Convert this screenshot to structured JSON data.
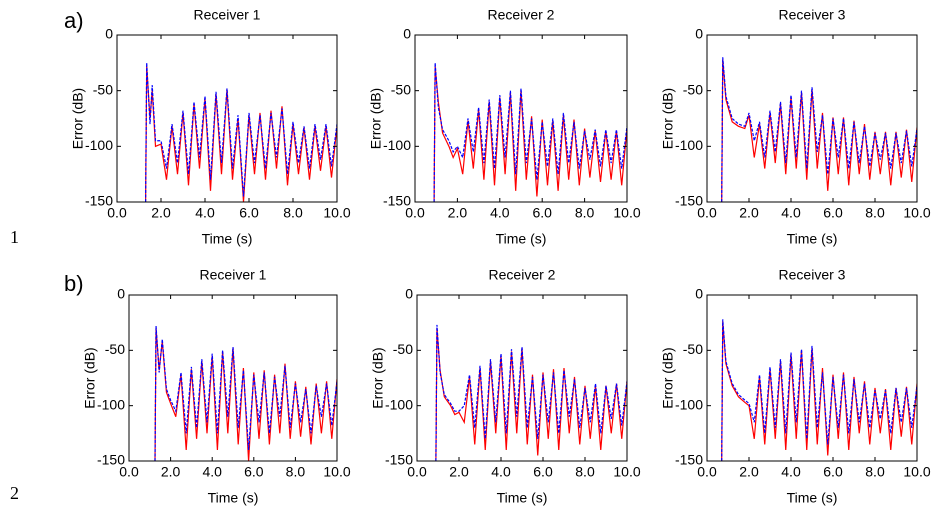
{
  "panel_labels": [
    "a)",
    "b)"
  ],
  "line_numbers": [
    "1",
    "2"
  ],
  "chart_data": [
    {
      "type": "line",
      "title": "Receiver 1",
      "xlabel": "Time (s)",
      "ylabel": "Error (dB)",
      "xlim": [
        0,
        10
      ],
      "ylim": [
        -150,
        0
      ],
      "xticks": [
        {
          "value": 0,
          "label": "0.0"
        },
        {
          "value": 2,
          "label": "2.0"
        },
        {
          "value": 4,
          "label": "4.0"
        },
        {
          "value": 6,
          "label": "6.0"
        },
        {
          "value": 8,
          "label": "8.0"
        },
        {
          "value": 10,
          "label": "10.0"
        }
      ],
      "yticks": [
        -150,
        -100,
        -50,
        0
      ],
      "x": [
        1.3,
        1.35,
        1.5,
        1.6,
        1.75,
        2,
        2.25,
        2.5,
        2.75,
        3,
        3.25,
        3.5,
        3.75,
        4,
        4.25,
        4.5,
        4.75,
        5,
        5.25,
        5.5,
        5.75,
        6,
        6.25,
        6.5,
        6.75,
        7,
        7.25,
        7.5,
        7.75,
        8,
        8.25,
        8.5,
        8.75,
        9,
        9.25,
        9.5,
        9.75,
        10
      ],
      "series": [
        {
          "color": "#ff0000",
          "linestyle": "solid",
          "values": [
            -150,
            -28,
            -75,
            -50,
            -100,
            -98,
            -130,
            -82,
            -125,
            -70,
            -135,
            -62,
            -120,
            -57,
            -140,
            -53,
            -125,
            -49,
            -130,
            -75,
            -150,
            -72,
            -125,
            -70,
            -130,
            -68,
            -120,
            -64,
            -135,
            -80,
            -125,
            -83,
            -130,
            -82,
            -122,
            -82,
            -128,
            -82
          ]
        },
        {
          "color": "#0000ff",
          "linestyle": "dashed",
          "values": [
            -150,
            -25,
            -80,
            -45,
            -95,
            -95,
            -120,
            -80,
            -115,
            -68,
            -125,
            -60,
            -110,
            -55,
            -130,
            -51,
            -115,
            -48,
            -120,
            -72,
            -145,
            -70,
            -115,
            -72,
            -120,
            -70,
            -110,
            -66,
            -125,
            -78,
            -115,
            -82,
            -120,
            -80,
            -112,
            -80,
            -118,
            -80
          ]
        }
      ]
    },
    {
      "type": "line",
      "title": "Receiver 2",
      "xlabel": "Time (s)",
      "ylabel": "Error (dB)",
      "xlim": [
        0,
        10
      ],
      "ylim": [
        -150,
        0
      ],
      "xticks": [
        {
          "value": 0,
          "label": "0.0"
        },
        {
          "value": 2,
          "label": "2.0"
        },
        {
          "value": 4,
          "label": "4.0"
        },
        {
          "value": 6,
          "label": "6.0"
        },
        {
          "value": 8,
          "label": "8.0"
        },
        {
          "value": 10,
          "label": "10.0"
        }
      ],
      "yticks": [
        -150,
        -100,
        -50,
        0
      ],
      "x": [
        0.9,
        0.95,
        1.1,
        1.3,
        1.6,
        1.8,
        2,
        2.25,
        2.5,
        2.75,
        3,
        3.25,
        3.5,
        3.75,
        4,
        4.25,
        4.5,
        4.75,
        5,
        5.25,
        5.5,
        5.75,
        6,
        6.25,
        6.5,
        6.75,
        7,
        7.25,
        7.5,
        7.75,
        8,
        8.25,
        8.5,
        8.75,
        9,
        9.25,
        9.5,
        9.75,
        10
      ],
      "series": [
        {
          "color": "#ff0000",
          "linestyle": "solid",
          "values": [
            -150,
            -28,
            -60,
            -88,
            -100,
            -110,
            -102,
            -125,
            -77,
            -120,
            -67,
            -130,
            -60,
            -135,
            -56,
            -125,
            -52,
            -140,
            -50,
            -130,
            -73,
            -145,
            -76,
            -135,
            -77,
            -140,
            -72,
            -130,
            -76,
            -135,
            -84,
            -128,
            -86,
            -132,
            -86,
            -130,
            -86,
            -135,
            -84
          ]
        },
        {
          "color": "#0000ff",
          "linestyle": "dashed",
          "values": [
            -150,
            -25,
            -65,
            -85,
            -95,
            -105,
            -100,
            -110,
            -75,
            -105,
            -65,
            -115,
            -58,
            -120,
            -54,
            -110,
            -50,
            -125,
            -48,
            -115,
            -75,
            -130,
            -78,
            -118,
            -75,
            -125,
            -70,
            -115,
            -78,
            -120,
            -86,
            -112,
            -85,
            -118,
            -85,
            -115,
            -85,
            -120,
            -82
          ]
        }
      ]
    },
    {
      "type": "line",
      "title": "Receiver 3",
      "xlabel": "Time (s)",
      "ylabel": "Error (dB)",
      "xlim": [
        0,
        10
      ],
      "ylim": [
        -150,
        0
      ],
      "xticks": [
        {
          "value": 0,
          "label": "0.0"
        },
        {
          "value": 2,
          "label": "2.0"
        },
        {
          "value": 4,
          "label": "4.0"
        },
        {
          "value": 6,
          "label": "6.0"
        },
        {
          "value": 8,
          "label": "8.0"
        },
        {
          "value": 10,
          "label": "10.0"
        }
      ],
      "yticks": [
        -150,
        -100,
        -50,
        0
      ],
      "x": [
        0.7,
        0.75,
        0.9,
        1.2,
        1.5,
        1.8,
        2,
        2.25,
        2.5,
        2.75,
        3,
        3.25,
        3.5,
        3.75,
        4,
        4.25,
        4.5,
        4.75,
        5,
        5.25,
        5.5,
        5.75,
        6,
        6.25,
        6.5,
        6.75,
        7,
        7.25,
        7.5,
        7.75,
        8,
        8.25,
        8.5,
        8.75,
        9,
        9.25,
        9.5,
        9.75,
        10
      ],
      "series": [
        {
          "color": "#ff0000",
          "linestyle": "solid",
          "values": [
            -150,
            -22,
            -58,
            -78,
            -82,
            -84,
            -72,
            -110,
            -80,
            -120,
            -70,
            -115,
            -62,
            -125,
            -56,
            -120,
            -52,
            -130,
            -49,
            -120,
            -70,
            -140,
            -74,
            -125,
            -74,
            -135,
            -77,
            -125,
            -80,
            -130,
            -87,
            -125,
            -87,
            -135,
            -87,
            -128,
            -85,
            -132,
            -83
          ]
        },
        {
          "color": "#0000ff",
          "linestyle": "dashed",
          "values": [
            -150,
            -20,
            -55,
            -75,
            -80,
            -82,
            -70,
            -95,
            -78,
            -110,
            -68,
            -105,
            -60,
            -115,
            -54,
            -110,
            -50,
            -120,
            -47,
            -105,
            -72,
            -125,
            -75,
            -110,
            -75,
            -120,
            -78,
            -115,
            -82,
            -118,
            -88,
            -112,
            -88,
            -120,
            -88,
            -115,
            -86,
            -118,
            -84
          ]
        }
      ]
    },
    {
      "type": "line",
      "title": "Receiver 1",
      "xlabel": "Time (s)",
      "ylabel": "Error (dB)",
      "xlim": [
        0,
        10
      ],
      "ylim": [
        -150,
        0
      ],
      "xticks": [
        {
          "value": 0,
          "label": "0.0"
        },
        {
          "value": 2,
          "label": "2.0"
        },
        {
          "value": 4,
          "label": "4.0"
        },
        {
          "value": 6,
          "label": "6.0"
        },
        {
          "value": 8,
          "label": "8.0"
        },
        {
          "value": 10,
          "label": "10.0"
        }
      ],
      "yticks": [
        -150,
        -100,
        -50,
        0
      ],
      "x": [
        1.25,
        1.3,
        1.45,
        1.6,
        1.8,
        2,
        2.25,
        2.5,
        2.75,
        3,
        3.25,
        3.5,
        3.75,
        4,
        4.25,
        4.5,
        4.75,
        5,
        5.25,
        5.5,
        5.75,
        6,
        6.25,
        6.5,
        6.75,
        7,
        7.25,
        7.5,
        7.75,
        8,
        8.25,
        8.5,
        8.75,
        9,
        9.25,
        9.5,
        9.75,
        10
      ],
      "series": [
        {
          "color": "#ff0000",
          "linestyle": "solid",
          "values": [
            -150,
            -30,
            -68,
            -42,
            -88,
            -98,
            -110,
            -72,
            -140,
            -67,
            -130,
            -60,
            -125,
            -55,
            -140,
            -51,
            -125,
            -48,
            -135,
            -66,
            -150,
            -70,
            -130,
            -68,
            -135,
            -72,
            -125,
            -62,
            -130,
            -78,
            -128,
            -83,
            -135,
            -80,
            -125,
            -78,
            -130,
            -76
          ]
        },
        {
          "color": "#0000ff",
          "linestyle": "dashed",
          "values": [
            -150,
            -28,
            -70,
            -40,
            -85,
            -95,
            -105,
            -70,
            -125,
            -65,
            -120,
            -58,
            -115,
            -53,
            -125,
            -50,
            -110,
            -47,
            -120,
            -68,
            -140,
            -72,
            -115,
            -70,
            -125,
            -74,
            -110,
            -64,
            -120,
            -80,
            -115,
            -85,
            -125,
            -82,
            -110,
            -80,
            -118,
            -78
          ]
        }
      ]
    },
    {
      "type": "line",
      "title": "Receiver 2",
      "xlabel": "Time (s)",
      "ylabel": "Error (dB)",
      "xlim": [
        0,
        10
      ],
      "ylim": [
        -150,
        0
      ],
      "xticks": [
        {
          "value": 0,
          "label": "0.0"
        },
        {
          "value": 2,
          "label": "2.0"
        },
        {
          "value": 4,
          "label": "4.0"
        },
        {
          "value": 6,
          "label": "6.0"
        },
        {
          "value": 8,
          "label": "8.0"
        },
        {
          "value": 10,
          "label": "10.0"
        }
      ],
      "yticks": [
        -150,
        -100,
        -50,
        0
      ],
      "x": [
        0.9,
        0.95,
        1.1,
        1.3,
        1.6,
        1.8,
        2,
        2.25,
        2.5,
        2.75,
        3,
        3.25,
        3.5,
        3.75,
        4,
        4.25,
        4.5,
        4.75,
        5,
        5.25,
        5.5,
        5.75,
        6,
        6.25,
        6.5,
        6.75,
        7,
        7.25,
        7.5,
        7.75,
        8,
        8.25,
        8.5,
        8.75,
        9,
        9.25,
        9.5,
        9.75,
        10
      ],
      "series": [
        {
          "color": "#ff0000",
          "linestyle": "solid",
          "values": [
            -150,
            -30,
            -68,
            -92,
            -100,
            -108,
            -106,
            -115,
            -74,
            -135,
            -66,
            -140,
            -60,
            -125,
            -55,
            -140,
            -51,
            -125,
            -48,
            -135,
            -72,
            -145,
            -70,
            -130,
            -67,
            -140,
            -66,
            -125,
            -74,
            -135,
            -82,
            -130,
            -82,
            -140,
            -82,
            -125,
            -80,
            -130,
            -78
          ]
        },
        {
          "color": "#0000ff",
          "linestyle": "dashed",
          "values": [
            -150,
            -27,
            -70,
            -90,
            -98,
            -105,
            -105,
            -100,
            -72,
            -120,
            -64,
            -130,
            -58,
            -115,
            -53,
            -125,
            -49,
            -110,
            -47,
            -120,
            -74,
            -130,
            -72,
            -115,
            -70,
            -125,
            -68,
            -110,
            -76,
            -120,
            -84,
            -115,
            -80,
            -125,
            -82,
            -112,
            -80,
            -118,
            -78
          ]
        }
      ]
    },
    {
      "type": "line",
      "title": "Receiver 3",
      "xlabel": "Time (s)",
      "ylabel": "Error (dB)",
      "xlim": [
        0,
        10
      ],
      "ylim": [
        -150,
        0
      ],
      "xticks": [
        {
          "value": 0,
          "label": "0.0"
        },
        {
          "value": 2,
          "label": "2.0"
        },
        {
          "value": 4,
          "label": "4.0"
        },
        {
          "value": 6,
          "label": "6.0"
        },
        {
          "value": 8,
          "label": "8.0"
        },
        {
          "value": 10,
          "label": "10.0"
        }
      ],
      "yticks": [
        -150,
        -100,
        -50,
        0
      ],
      "x": [
        0.7,
        0.75,
        0.9,
        1.2,
        1.5,
        1.8,
        2,
        2.25,
        2.5,
        2.75,
        3,
        3.25,
        3.5,
        3.75,
        4,
        4.25,
        4.5,
        4.75,
        5,
        5.25,
        5.5,
        5.75,
        6,
        6.25,
        6.5,
        6.75,
        7,
        7.25,
        7.5,
        7.75,
        8,
        8.25,
        8.5,
        8.75,
        9,
        9.25,
        9.5,
        9.75,
        10
      ],
      "series": [
        {
          "color": "#ff0000",
          "linestyle": "solid",
          "values": [
            -150,
            -24,
            -62,
            -82,
            -92,
            -97,
            -100,
            -130,
            -74,
            -135,
            -67,
            -130,
            -60,
            -140,
            -54,
            -130,
            -50,
            -140,
            -48,
            -135,
            -66,
            -145,
            -72,
            -130,
            -70,
            -140,
            -74,
            -125,
            -78,
            -135,
            -84,
            -125,
            -85,
            -140,
            -84,
            -128,
            -83,
            -135,
            -80
          ]
        },
        {
          "color": "#0000ff",
          "linestyle": "dashed",
          "values": [
            -150,
            -22,
            -60,
            -80,
            -90,
            -95,
            -98,
            -115,
            -72,
            -125,
            -65,
            -120,
            -58,
            -125,
            -52,
            -115,
            -49,
            -130,
            -46,
            -120,
            -70,
            -135,
            -74,
            -120,
            -72,
            -125,
            -76,
            -115,
            -80,
            -120,
            -86,
            -112,
            -86,
            -125,
            -84,
            -115,
            -84,
            -120,
            -82
          ]
        }
      ]
    }
  ]
}
